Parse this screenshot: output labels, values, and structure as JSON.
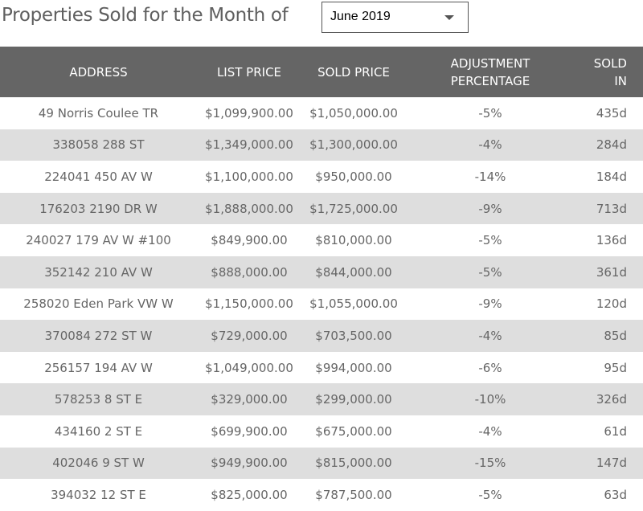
{
  "header": {
    "title": "Properties Sold for the Month of",
    "month_select": {
      "selected": "June 2019",
      "icon": "caret-down-icon"
    }
  },
  "table": {
    "columns": [
      {
        "line1": "ADDRESS",
        "line2": ""
      },
      {
        "line1": "LIST PRICE",
        "line2": ""
      },
      {
        "line1": "SOLD PRICE",
        "line2": ""
      },
      {
        "line1": "ADJUSTMENT",
        "line2": "PERCENTAGE"
      },
      {
        "line1": "SOLD",
        "line2": "IN"
      }
    ],
    "rows": [
      [
        "49 Norris Coulee TR",
        "$1,099,900.00",
        "$1,050,000.00",
        "-5%",
        "435d"
      ],
      [
        "338058 288 ST",
        "$1,349,000.00",
        "$1,300,000.00",
        "-4%",
        "284d"
      ],
      [
        "224041 450 AV W",
        "$1,100,000.00",
        "$950,000.00",
        "-14%",
        "184d"
      ],
      [
        "176203 2190 DR W",
        "$1,888,000.00",
        "$1,725,000.00",
        "-9%",
        "713d"
      ],
      [
        "240027 179 AV W #100",
        "$849,900.00",
        "$810,000.00",
        "-5%",
        "136d"
      ],
      [
        "352142 210 AV W",
        "$888,000.00",
        "$844,000.00",
        "-5%",
        "361d"
      ],
      [
        "258020 Eden Park VW W",
        "$1,150,000.00",
        "$1,055,000.00",
        "-9%",
        "120d"
      ],
      [
        "370084 272 ST W",
        "$729,000.00",
        "$703,500.00",
        "-4%",
        "85d"
      ],
      [
        "256157 194 AV W",
        "$1,049,000.00",
        "$994,000.00",
        "-6%",
        "95d"
      ],
      [
        "578253 8 ST E",
        "$329,000.00",
        "$299,000.00",
        "-10%",
        "326d"
      ],
      [
        "434160 2 ST E",
        "$699,900.00",
        "$675,000.00",
        "-4%",
        "61d"
      ],
      [
        "402046 9 ST W",
        "$949,900.00",
        "$815,000.00",
        "-15%",
        "147d"
      ],
      [
        "394032 12 ST E",
        "$825,000.00",
        "$787,500.00",
        "-5%",
        "63d"
      ]
    ]
  }
}
